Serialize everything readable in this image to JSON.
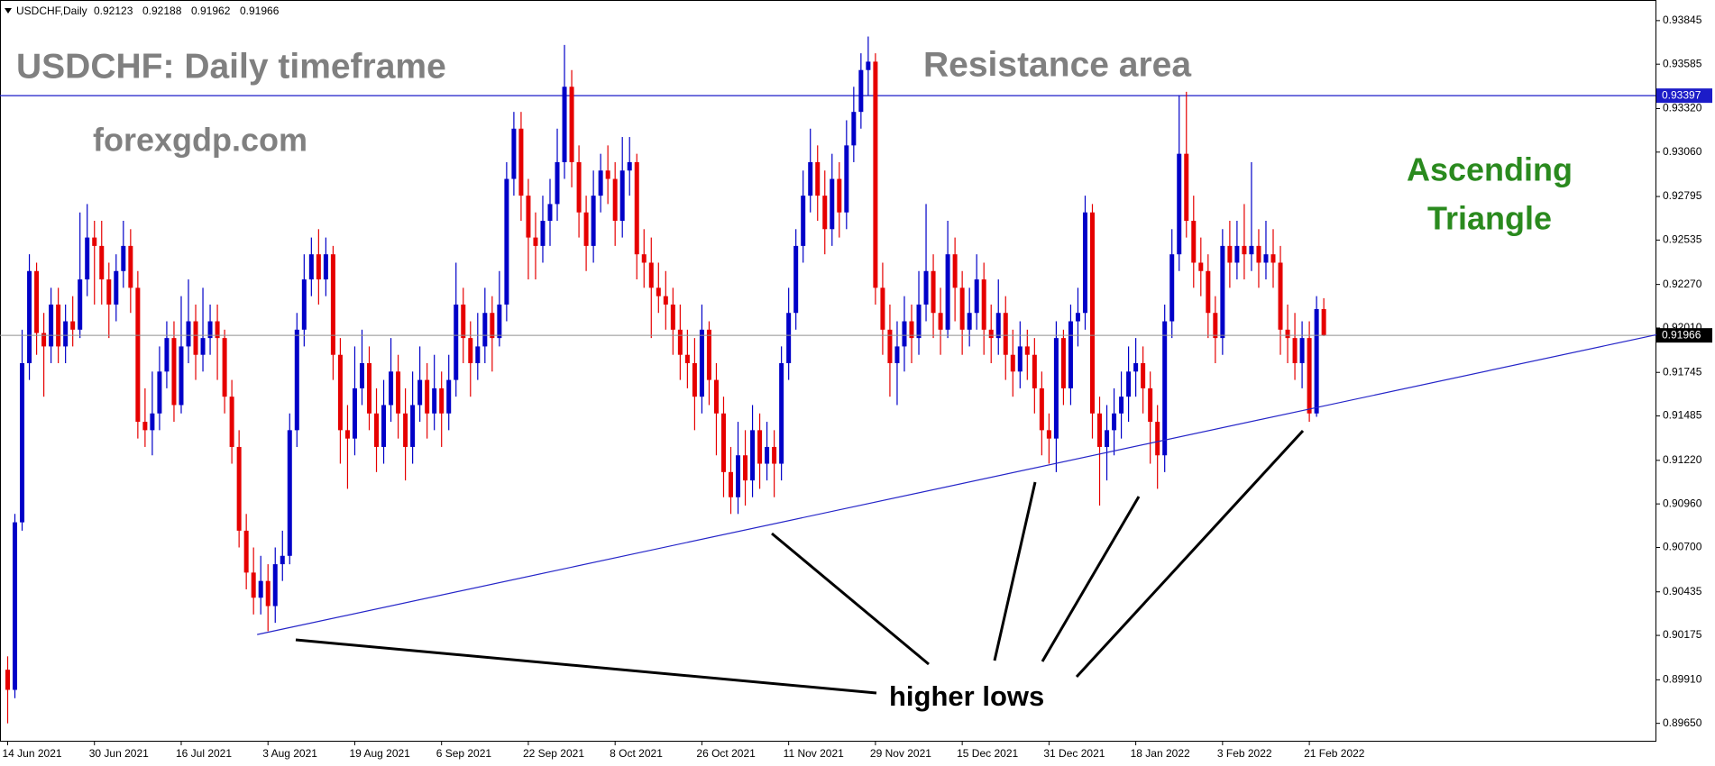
{
  "chart_data": {
    "type": "candlestick",
    "symbol": "USDCHF,Daily",
    "up_color": "#0000c8",
    "down_color": "#e60000",
    "ylim": [
      0.89546,
      0.93968
    ],
    "yticks": [
      0.93845,
      0.93585,
      {
        "value": 0.9332,
        "label": "0.93320"
      },
      {
        "value": 0.9306,
        "label": "0.93060"
      },
      0.92795,
      0.92535,
      {
        "value": 0.9227,
        "label": "0.92270"
      },
      {
        "value": 0.9201,
        "label": "0.92010"
      },
      0.91745,
      0.91485,
      {
        "value": 0.9122,
        "label": "0.91220"
      },
      {
        "value": 0.9096,
        "label": "0.90960"
      },
      {
        "value": 0.907,
        "label": "0.90700"
      },
      0.90435,
      0.90175,
      {
        "value": 0.8991,
        "label": "0.89910"
      },
      {
        "value": 0.8965,
        "label": "0.89650"
      }
    ],
    "resistance": 0.93397,
    "resistance_color": "#1c1cc8",
    "trendline": {
      "x": [
        34.5,
        228
      ],
      "y": [
        0.9018,
        0.9197
      ],
      "color": "#2525c8"
    },
    "annotations": {
      "title": "USDCHF: Daily timeframe",
      "site": "forexgdp.com",
      "resistance_label": "Resistance area",
      "pattern": [
        "Ascending",
        "Triangle"
      ],
      "note": "higher lows"
    },
    "categories": [
      "14 Jun 2021",
      null,
      null,
      null,
      null,
      null,
      null,
      null,
      null,
      null,
      null,
      null,
      "30 Jun 2021",
      null,
      null,
      null,
      null,
      null,
      null,
      null,
      null,
      null,
      null,
      null,
      "16 Jul 2021",
      null,
      null,
      null,
      null,
      null,
      null,
      null,
      null,
      null,
      null,
      null,
      "3 Aug 2021",
      null,
      null,
      null,
      null,
      null,
      null,
      null,
      null,
      null,
      null,
      null,
      "19 Aug 2021",
      null,
      null,
      null,
      null,
      null,
      null,
      null,
      null,
      null,
      null,
      null,
      "6 Sep 2021",
      null,
      null,
      null,
      null,
      null,
      null,
      null,
      null,
      null,
      null,
      null,
      "22 Sep 2021",
      null,
      null,
      null,
      null,
      null,
      null,
      null,
      null,
      null,
      null,
      null,
      "8 Oct 2021",
      null,
      null,
      null,
      null,
      null,
      null,
      null,
      null,
      null,
      null,
      null,
      "26 Oct 2021",
      null,
      null,
      null,
      null,
      null,
      null,
      null,
      null,
      null,
      null,
      null,
      "11 Nov 2021",
      null,
      null,
      null,
      null,
      null,
      null,
      null,
      null,
      null,
      null,
      null,
      "29 Nov 2021",
      null,
      null,
      null,
      null,
      null,
      null,
      null,
      null,
      null,
      null,
      null,
      "15 Dec 2021",
      null,
      null,
      null,
      null,
      null,
      null,
      null,
      null,
      null,
      null,
      null,
      "31 Dec 2021",
      null,
      null,
      null,
      null,
      null,
      null,
      null,
      null,
      null,
      null,
      null,
      "18 Jan 2022",
      null,
      null,
      null,
      null,
      null,
      null,
      null,
      null,
      null,
      null,
      null,
      "3 Feb 2022",
      null,
      null,
      null,
      null,
      null,
      null,
      null,
      null,
      null,
      null,
      null,
      "21 Feb 2022",
      null,
      null
    ],
    "candles": [
      [
        0.8997,
        0.9005,
        0.8965,
        0.8985
      ],
      [
        0.8985,
        0.909,
        0.898,
        0.9085
      ],
      [
        0.9085,
        0.92,
        0.908,
        0.918
      ],
      [
        0.918,
        0.9245,
        0.917,
        0.9235
      ],
      [
        0.9235,
        0.924,
        0.9185,
        0.9198
      ],
      [
        0.9198,
        0.921,
        0.916,
        0.919
      ],
      [
        0.919,
        0.9225,
        0.918,
        0.9215
      ],
      [
        0.9215,
        0.9225,
        0.918,
        0.919
      ],
      [
        0.919,
        0.9215,
        0.918,
        0.9205
      ],
      [
        0.9205,
        0.922,
        0.919,
        0.92
      ],
      [
        0.92,
        0.927,
        0.9195,
        0.923
      ],
      [
        0.923,
        0.9275,
        0.922,
        0.9255
      ],
      [
        0.9255,
        0.9265,
        0.9215,
        0.925
      ],
      [
        0.925,
        0.9265,
        0.9215,
        0.923
      ],
      [
        0.923,
        0.924,
        0.9195,
        0.9215
      ],
      [
        0.9215,
        0.9245,
        0.9205,
        0.9235
      ],
      [
        0.9235,
        0.9265,
        0.9225,
        0.925
      ],
      [
        0.925,
        0.926,
        0.921,
        0.9225
      ],
      [
        0.9225,
        0.9235,
        0.9135,
        0.9145
      ],
      [
        0.9145,
        0.9165,
        0.913,
        0.914
      ],
      [
        0.914,
        0.9175,
        0.9125,
        0.915
      ],
      [
        0.915,
        0.919,
        0.914,
        0.9175
      ],
      [
        0.9175,
        0.9205,
        0.9165,
        0.9195
      ],
      [
        0.9195,
        0.9205,
        0.9145,
        0.9155
      ],
      [
        0.9155,
        0.922,
        0.915,
        0.919
      ],
      [
        0.919,
        0.923,
        0.918,
        0.9205
      ],
      [
        0.9205,
        0.9215,
        0.917,
        0.9185
      ],
      [
        0.9185,
        0.9225,
        0.9175,
        0.9195
      ],
      [
        0.9195,
        0.9215,
        0.9185,
        0.9205
      ],
      [
        0.9205,
        0.9215,
        0.917,
        0.9195
      ],
      [
        0.9195,
        0.92,
        0.915,
        0.916
      ],
      [
        0.916,
        0.917,
        0.912,
        0.913
      ],
      [
        0.913,
        0.914,
        0.907,
        0.908
      ],
      [
        0.908,
        0.909,
        0.9045,
        0.9055
      ],
      [
        0.9055,
        0.907,
        0.903,
        0.904
      ],
      [
        0.904,
        0.9065,
        0.903,
        0.905
      ],
      [
        0.905,
        0.906,
        0.902,
        0.9035
      ],
      [
        0.9035,
        0.907,
        0.9025,
        0.906
      ],
      [
        0.906,
        0.908,
        0.905,
        0.9065
      ],
      [
        0.9065,
        0.915,
        0.906,
        0.914
      ],
      [
        0.914,
        0.921,
        0.913,
        0.92
      ],
      [
        0.92,
        0.9245,
        0.919,
        0.923
      ],
      [
        0.923,
        0.9255,
        0.922,
        0.9245
      ],
      [
        0.9245,
        0.926,
        0.9215,
        0.923
      ],
      [
        0.923,
        0.9255,
        0.922,
        0.9245
      ],
      [
        0.9245,
        0.925,
        0.917,
        0.9185
      ],
      [
        0.9185,
        0.9195,
        0.912,
        0.914
      ],
      [
        0.914,
        0.9155,
        0.9105,
        0.9135
      ],
      [
        0.9135,
        0.919,
        0.9125,
        0.9165
      ],
      [
        0.9165,
        0.92,
        0.9155,
        0.918
      ],
      [
        0.918,
        0.919,
        0.914,
        0.915
      ],
      [
        0.915,
        0.9165,
        0.9115,
        0.913
      ],
      [
        0.913,
        0.917,
        0.912,
        0.9155
      ],
      [
        0.9155,
        0.9195,
        0.9145,
        0.9175
      ],
      [
        0.9175,
        0.9185,
        0.9135,
        0.915
      ],
      [
        0.915,
        0.9165,
        0.911,
        0.913
      ],
      [
        0.913,
        0.9175,
        0.912,
        0.9155
      ],
      [
        0.9155,
        0.919,
        0.9145,
        0.917
      ],
      [
        0.917,
        0.918,
        0.9135,
        0.915
      ],
      [
        0.915,
        0.9185,
        0.914,
        0.9165
      ],
      [
        0.9165,
        0.9175,
        0.913,
        0.915
      ],
      [
        0.915,
        0.9185,
        0.914,
        0.917
      ],
      [
        0.917,
        0.924,
        0.916,
        0.9215
      ],
      [
        0.9215,
        0.9225,
        0.918,
        0.9195
      ],
      [
        0.9195,
        0.9205,
        0.916,
        0.918
      ],
      [
        0.918,
        0.921,
        0.917,
        0.919
      ],
      [
        0.919,
        0.9225,
        0.918,
        0.921
      ],
      [
        0.921,
        0.922,
        0.9175,
        0.9195
      ],
      [
        0.9195,
        0.9235,
        0.919,
        0.9215
      ],
      [
        0.9215,
        0.93,
        0.9205,
        0.929
      ],
      [
        0.929,
        0.933,
        0.928,
        0.932
      ],
      [
        0.932,
        0.933,
        0.9265,
        0.928
      ],
      [
        0.928,
        0.929,
        0.923,
        0.9255
      ],
      [
        0.9255,
        0.927,
        0.923,
        0.925
      ],
      [
        0.925,
        0.928,
        0.924,
        0.9265
      ],
      [
        0.9265,
        0.929,
        0.925,
        0.9275
      ],
      [
        0.9275,
        0.932,
        0.9265,
        0.93
      ],
      [
        0.93,
        0.937,
        0.929,
        0.9345
      ],
      [
        0.9345,
        0.9355,
        0.9285,
        0.93
      ],
      [
        0.93,
        0.931,
        0.9255,
        0.927
      ],
      [
        0.927,
        0.928,
        0.9235,
        0.925
      ],
      [
        0.925,
        0.9295,
        0.924,
        0.928
      ],
      [
        0.928,
        0.9305,
        0.927,
        0.9295
      ],
      [
        0.9295,
        0.931,
        0.9275,
        0.929
      ],
      [
        0.929,
        0.93,
        0.925,
        0.9265
      ],
      [
        0.9265,
        0.9315,
        0.9255,
        0.9295
      ],
      [
        0.9295,
        0.9315,
        0.928,
        0.93
      ],
      [
        0.93,
        0.9305,
        0.923,
        0.9245
      ],
      [
        0.9245,
        0.926,
        0.9225,
        0.924
      ],
      [
        0.924,
        0.9255,
        0.9195,
        0.9225
      ],
      [
        0.9225,
        0.924,
        0.921,
        0.922
      ],
      [
        0.922,
        0.9235,
        0.92,
        0.9215
      ],
      [
        0.9215,
        0.9225,
        0.9185,
        0.92
      ],
      [
        0.92,
        0.9215,
        0.917,
        0.9185
      ],
      [
        0.9185,
        0.92,
        0.9165,
        0.918
      ],
      [
        0.918,
        0.9195,
        0.914,
        0.916
      ],
      [
        0.916,
        0.9215,
        0.915,
        0.92
      ],
      [
        0.92,
        0.9205,
        0.9155,
        0.917
      ],
      [
        0.917,
        0.918,
        0.9125,
        0.915
      ],
      [
        0.915,
        0.916,
        0.91,
        0.9115
      ],
      [
        0.9115,
        0.913,
        0.909,
        0.91
      ],
      [
        0.91,
        0.9145,
        0.909,
        0.9125
      ],
      [
        0.9125,
        0.914,
        0.9095,
        0.911
      ],
      [
        0.911,
        0.9155,
        0.91,
        0.914
      ],
      [
        0.914,
        0.915,
        0.9105,
        0.912
      ],
      [
        0.912,
        0.9145,
        0.911,
        0.913
      ],
      [
        0.913,
        0.914,
        0.91,
        0.912
      ],
      [
        0.912,
        0.919,
        0.911,
        0.918
      ],
      [
        0.918,
        0.9225,
        0.917,
        0.921
      ],
      [
        0.921,
        0.926,
        0.92,
        0.925
      ],
      [
        0.925,
        0.9295,
        0.924,
        0.928
      ],
      [
        0.928,
        0.932,
        0.927,
        0.93
      ],
      [
        0.93,
        0.931,
        0.9265,
        0.928
      ],
      [
        0.928,
        0.9295,
        0.9245,
        0.926
      ],
      [
        0.926,
        0.9305,
        0.925,
        0.929
      ],
      [
        0.929,
        0.93,
        0.9255,
        0.927
      ],
      [
        0.927,
        0.9325,
        0.926,
        0.931
      ],
      [
        0.931,
        0.9345,
        0.93,
        0.933
      ],
      [
        0.933,
        0.9365,
        0.932,
        0.9355
      ],
      [
        0.9355,
        0.9375,
        0.934,
        0.936
      ],
      [
        0.936,
        0.9365,
        0.9215,
        0.9225
      ],
      [
        0.9225,
        0.924,
        0.9185,
        0.92
      ],
      [
        0.92,
        0.9215,
        0.916,
        0.918
      ],
      [
        0.918,
        0.9205,
        0.9155,
        0.919
      ],
      [
        0.919,
        0.922,
        0.9175,
        0.9205
      ],
      [
        0.9205,
        0.9215,
        0.918,
        0.9195
      ],
      [
        0.9195,
        0.9235,
        0.9185,
        0.9215
      ],
      [
        0.9215,
        0.9275,
        0.9205,
        0.9235
      ],
      [
        0.9235,
        0.9245,
        0.9195,
        0.921
      ],
      [
        0.921,
        0.9225,
        0.9185,
        0.92
      ],
      [
        0.92,
        0.9265,
        0.9195,
        0.9245
      ],
      [
        0.9245,
        0.9255,
        0.9205,
        0.9225
      ],
      [
        0.9225,
        0.9235,
        0.9185,
        0.92
      ],
      [
        0.92,
        0.9225,
        0.919,
        0.921
      ],
      [
        0.921,
        0.9245,
        0.92,
        0.923
      ],
      [
        0.923,
        0.924,
        0.9185,
        0.92
      ],
      [
        0.92,
        0.9215,
        0.918,
        0.9195
      ],
      [
        0.9195,
        0.923,
        0.9185,
        0.921
      ],
      [
        0.921,
        0.922,
        0.917,
        0.9185
      ],
      [
        0.9185,
        0.92,
        0.916,
        0.9175
      ],
      [
        0.9175,
        0.9205,
        0.9165,
        0.919
      ],
      [
        0.919,
        0.92,
        0.917,
        0.9185
      ],
      [
        0.9185,
        0.9195,
        0.915,
        0.9165
      ],
      [
        0.9165,
        0.9175,
        0.9125,
        0.914
      ],
      [
        0.914,
        0.915,
        0.912,
        0.9135
      ],
      [
        0.9135,
        0.9205,
        0.9115,
        0.9195
      ],
      [
        0.9195,
        0.92,
        0.9155,
        0.9165
      ],
      [
        0.9165,
        0.9215,
        0.9155,
        0.9205
      ],
      [
        0.9205,
        0.9225,
        0.919,
        0.921
      ],
      [
        0.921,
        0.928,
        0.92,
        0.927
      ],
      [
        0.927,
        0.9275,
        0.9135,
        0.915
      ],
      [
        0.915,
        0.916,
        0.9095,
        0.913
      ],
      [
        0.913,
        0.9155,
        0.911,
        0.914
      ],
      [
        0.914,
        0.9165,
        0.9125,
        0.915
      ],
      [
        0.915,
        0.9175,
        0.9135,
        0.916
      ],
      [
        0.916,
        0.919,
        0.9145,
        0.9175
      ],
      [
        0.9175,
        0.9195,
        0.916,
        0.918
      ],
      [
        0.918,
        0.919,
        0.915,
        0.9165
      ],
      [
        0.9165,
        0.9175,
        0.912,
        0.9145
      ],
      [
        0.9145,
        0.9155,
        0.9105,
        0.9125
      ],
      [
        0.9125,
        0.9215,
        0.9115,
        0.9205
      ],
      [
        0.9205,
        0.926,
        0.9195,
        0.9245
      ],
      [
        0.9245,
        0.934,
        0.9235,
        0.9305
      ],
      [
        0.9305,
        0.9342,
        0.9255,
        0.9265
      ],
      [
        0.9265,
        0.928,
        0.9225,
        0.924
      ],
      [
        0.924,
        0.9255,
        0.922,
        0.9235
      ],
      [
        0.9235,
        0.9245,
        0.9195,
        0.921
      ],
      [
        0.921,
        0.922,
        0.918,
        0.9195
      ],
      [
        0.9195,
        0.926,
        0.9185,
        0.925
      ],
      [
        0.925,
        0.9265,
        0.9225,
        0.924
      ],
      [
        0.924,
        0.9265,
        0.923,
        0.925
      ],
      [
        0.925,
        0.9275,
        0.923,
        0.9245
      ],
      [
        0.9245,
        0.93,
        0.9235,
        0.925
      ],
      [
        0.925,
        0.926,
        0.9225,
        0.924
      ],
      [
        0.924,
        0.9265,
        0.923,
        0.9245
      ],
      [
        0.9245,
        0.926,
        0.9225,
        0.924
      ],
      [
        0.924,
        0.925,
        0.9185,
        0.92
      ],
      [
        0.92,
        0.9215,
        0.918,
        0.9195
      ],
      [
        0.9195,
        0.921,
        0.917,
        0.918
      ],
      [
        0.918,
        0.9205,
        0.9165,
        0.9195
      ],
      [
        0.9195,
        0.9205,
        0.9145,
        0.915
      ],
      [
        0.915,
        0.922,
        0.9148,
        0.92123
      ],
      [
        0.92123,
        0.92188,
        0.91962,
        0.91966
      ]
    ]
  }
}
